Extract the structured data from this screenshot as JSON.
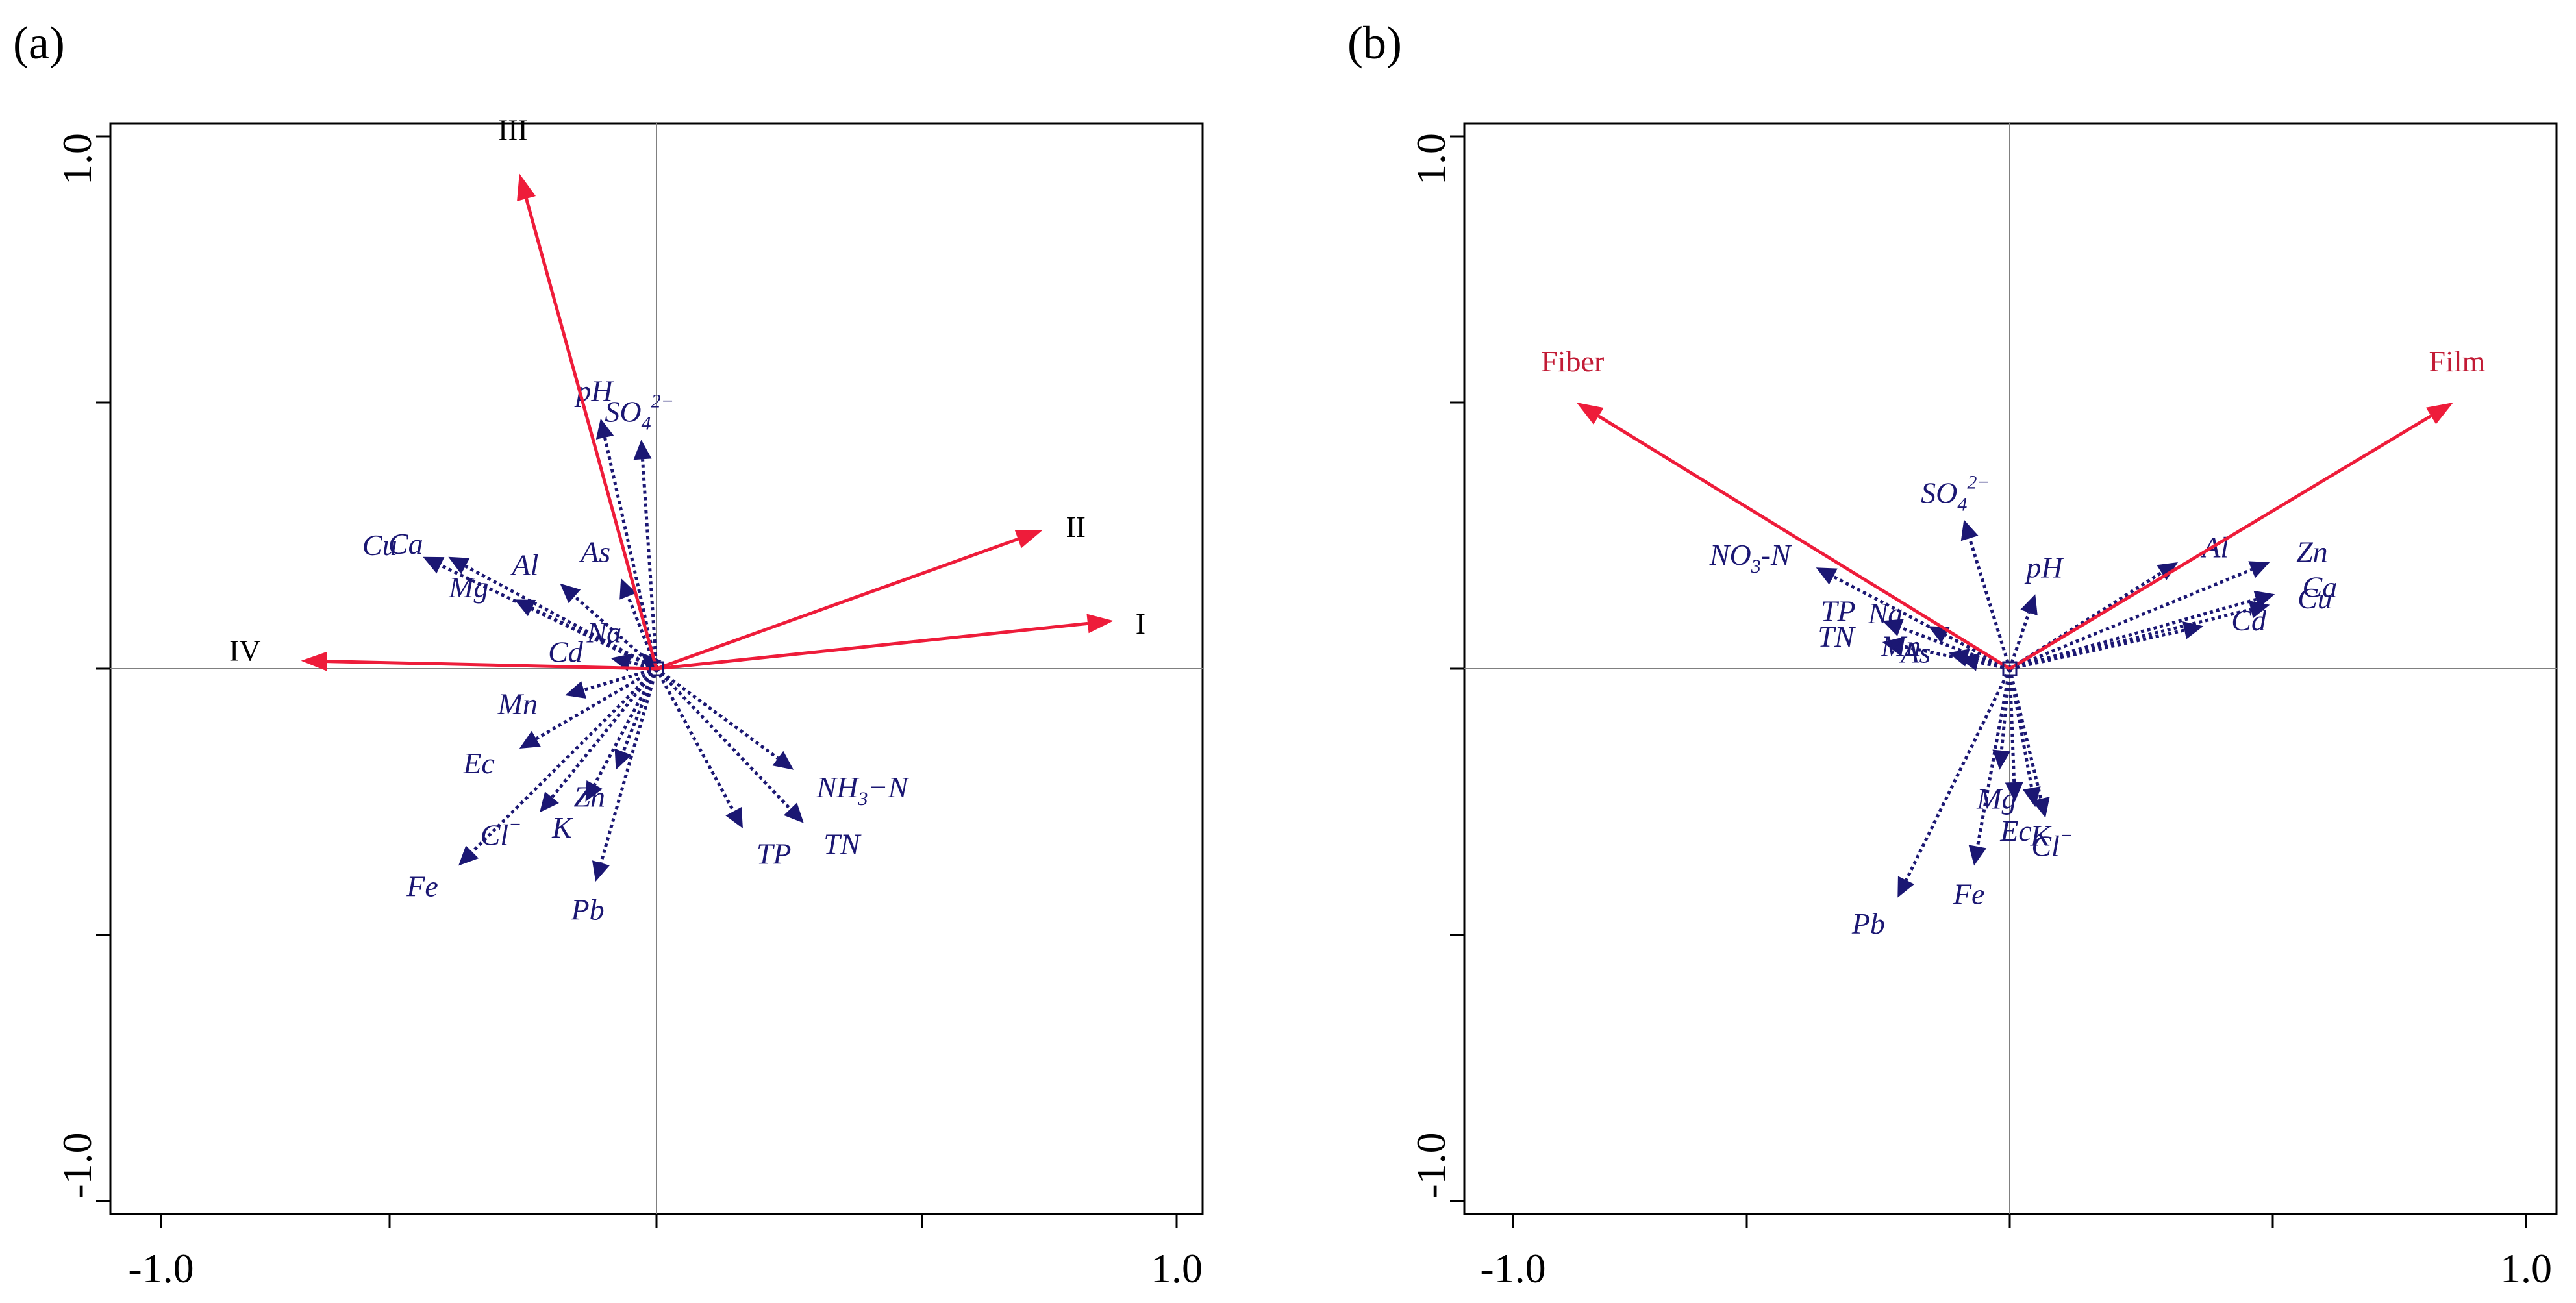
{
  "chart_data": [
    {
      "type": "scatter",
      "subtype": "rda-biplot",
      "panel_label": "(a)",
      "xlim": [
        -1.0,
        1.0
      ],
      "ylim": [
        -1.0,
        1.0
      ],
      "x_tick_labels": [
        "-1.0",
        "1.0"
      ],
      "y_tick_labels": [
        "-1.0",
        "1.0"
      ],
      "environment_vectors": [
        {
          "label": "I",
          "x": 0.9,
          "y": 0.09
        },
        {
          "label": "II",
          "x": 0.76,
          "y": 0.26
        },
        {
          "label": "III",
          "x": -0.27,
          "y": 0.93
        },
        {
          "label": "IV",
          "x": -0.7,
          "y": 0.015
        }
      ],
      "response_vectors": [
        {
          "label": "pH",
          "sup": "",
          "sub": "",
          "x": -0.11,
          "y": 0.47
        },
        {
          "label": "SO",
          "sub": "4",
          "sup": "2−",
          "x": -0.03,
          "y": 0.43
        },
        {
          "label": "Cu",
          "sup": "",
          "sub": "",
          "x": -0.46,
          "y": 0.21
        },
        {
          "label": "Ca",
          "sup": "",
          "sub": "",
          "x": -0.41,
          "y": 0.21
        },
        {
          "label": "Al",
          "sup": "",
          "sub": "",
          "x": -0.19,
          "y": 0.16
        },
        {
          "label": "As",
          "sup": "",
          "sub": "",
          "x": -0.07,
          "y": 0.17
        },
        {
          "label": "Mg",
          "sup": "",
          "sub": "",
          "x": -0.28,
          "y": 0.13
        },
        {
          "label": "Na",
          "sup": "",
          "sub": "",
          "x": -0.03,
          "y": 0.03
        },
        {
          "label": "Cd",
          "sup": "",
          "sub": "",
          "x": -0.09,
          "y": 0.02
        },
        {
          "label": "Mn",
          "sup": "",
          "sub": "",
          "x": -0.18,
          "y": -0.05
        },
        {
          "label": "Ec",
          "sup": "",
          "sub": "",
          "x": -0.27,
          "y": -0.15
        },
        {
          "label": "Zn",
          "sup": "",
          "sub": "",
          "x": -0.08,
          "y": -0.19
        },
        {
          "label": "Cl",
          "sup": "−",
          "sub": "",
          "x": -0.23,
          "y": -0.27
        },
        {
          "label": "K",
          "sup": "",
          "sub": "",
          "x": -0.14,
          "y": -0.25
        },
        {
          "label": "Fe",
          "sup": "",
          "sub": "",
          "x": -0.39,
          "y": -0.37
        },
        {
          "label": "Pb",
          "sup": "",
          "sub": "",
          "x": -0.12,
          "y": -0.4
        },
        {
          "label": "TP",
          "sup": "",
          "sub": "",
          "x": 0.17,
          "y": -0.3
        },
        {
          "label": "TN",
          "sup": "",
          "sub": "",
          "x": 0.29,
          "y": -0.29
        },
        {
          "label": "NH",
          "sub": "3",
          "sup": "",
          "tail": "−N",
          "x": 0.27,
          "y": -0.19
        }
      ]
    },
    {
      "type": "scatter",
      "subtype": "rda-biplot",
      "panel_label": "(b)",
      "xlim": [
        -1.0,
        1.0
      ],
      "ylim": [
        -1.0,
        1.0
      ],
      "x_tick_labels": [
        "-1.0",
        "1.0"
      ],
      "y_tick_labels": [
        "-1.0",
        "1.0"
      ],
      "environment_vectors": [
        {
          "label": "Fiber",
          "x": -0.85,
          "y": 0.5
        },
        {
          "label": "Film",
          "x": 0.87,
          "y": 0.5
        }
      ],
      "response_vectors": [
        {
          "label": "SO",
          "sub": "4",
          "sup": "2−",
          "x": -0.09,
          "y": 0.28
        },
        {
          "label": "NO",
          "sub": "3",
          "sup": "",
          "tail": "-N",
          "x": -0.38,
          "y": 0.19
        },
        {
          "label": "Na",
          "sup": "",
          "sub": "",
          "x": -0.16,
          "y": 0.08
        },
        {
          "label": "TP",
          "sup": "",
          "sub": "",
          "x": -0.25,
          "y": 0.09
        },
        {
          "label": "TN",
          "sup": "",
          "sub": "",
          "x": -0.25,
          "y": 0.05
        },
        {
          "label": "Mn",
          "sup": "",
          "sub": "",
          "x": -0.12,
          "y": 0.03
        },
        {
          "label": "As",
          "sup": "",
          "sub": "",
          "x": -0.1,
          "y": 0.02
        },
        {
          "label": "pH",
          "sup": "",
          "sub": "",
          "x": 0.05,
          "y": 0.14
        },
        {
          "label": "Al",
          "sup": "",
          "sub": "",
          "x": 0.33,
          "y": 0.2
        },
        {
          "label": "Zn",
          "sup": "",
          "sub": "",
          "x": 0.51,
          "y": 0.2
        },
        {
          "label": "Ca",
          "sup": "",
          "sub": "",
          "x": 0.52,
          "y": 0.14
        },
        {
          "label": "Cu",
          "sup": "",
          "sub": "",
          "x": 0.51,
          "y": 0.12
        },
        {
          "label": "Cd",
          "sup": "",
          "sub": "",
          "x": 0.38,
          "y": 0.08
        },
        {
          "label": "Mg",
          "sup": "",
          "sub": "",
          "x": -0.02,
          "y": -0.19
        },
        {
          "label": "Ec",
          "sup": "",
          "sub": "",
          "x": 0.01,
          "y": -0.25
        },
        {
          "label": "Cl",
          "sup": "−",
          "sub": "",
          "x": 0.07,
          "y": -0.28
        },
        {
          "label": "K",
          "sup": "",
          "sub": "",
          "x": 0.05,
          "y": -0.26
        },
        {
          "label": "Fe",
          "sup": "",
          "sub": "",
          "x": -0.07,
          "y": -0.37
        },
        {
          "label": "Pb",
          "sup": "",
          "sub": "",
          "x": -0.22,
          "y": -0.43
        }
      ]
    }
  ]
}
